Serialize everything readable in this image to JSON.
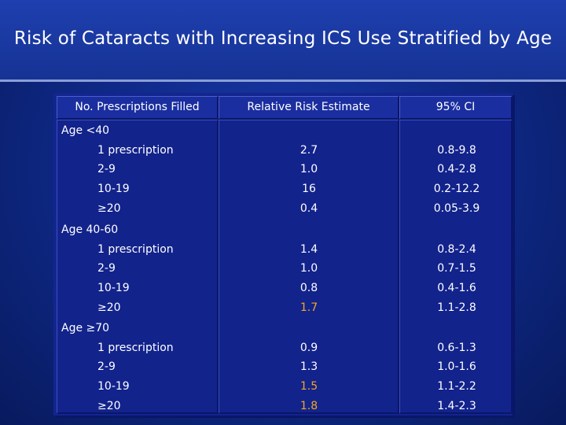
{
  "title": "Risk of Cataracts with Increasing ICS Use Stratified by Age",
  "table": {
    "headers": [
      "No. Prescriptions Filled",
      "Relative Risk Estimate",
      "95% CI"
    ],
    "groups": [
      {
        "label": "Age <40",
        "rows": [
          {
            "prescriptions": "1 prescription",
            "rr": "2.7",
            "ci": "0.8-9.8",
            "highlight": false
          },
          {
            "prescriptions": "2-9",
            "rr": "1.0",
            "ci": "0.4-2.8",
            "highlight": false
          },
          {
            "prescriptions": "10-19",
            "rr": "16",
            "ci": "0.2-12.2",
            "highlight": false
          },
          {
            "prescriptions": "≥20",
            "rr": "0.4",
            "ci": "0.05-3.9",
            "highlight": false
          }
        ]
      },
      {
        "label": "Age 40-60",
        "rows": [
          {
            "prescriptions": "1 prescription",
            "rr": "1.4",
            "ci": "0.8-2.4",
            "highlight": false
          },
          {
            "prescriptions": "2-9",
            "rr": "1.0",
            "ci": "0.7-1.5",
            "highlight": false
          },
          {
            "prescriptions": "10-19",
            "rr": "0.8",
            "ci": "0.4-1.6",
            "highlight": false
          },
          {
            "prescriptions": "≥20",
            "rr": "1.7",
            "ci": "1.1-2.8",
            "highlight": true
          }
        ]
      },
      {
        "label": "Age ≥70",
        "rows": [
          {
            "prescriptions": "1 prescription",
            "rr": "0.9",
            "ci": "0.6-1.3",
            "highlight": false
          },
          {
            "prescriptions": "2-9",
            "rr": "1.3",
            "ci": "1.0-1.6",
            "highlight": false
          },
          {
            "prescriptions": "10-19",
            "rr": "1.5",
            "ci": "1.1-2.2",
            "highlight": true
          },
          {
            "prescriptions": "≥20",
            "rr": "1.8",
            "ci": "1.4-2.3",
            "highlight": true
          }
        ]
      }
    ]
  },
  "colors": {
    "background": "#0f2a8a",
    "text": "#ffffff",
    "highlight": "#f5a623"
  }
}
